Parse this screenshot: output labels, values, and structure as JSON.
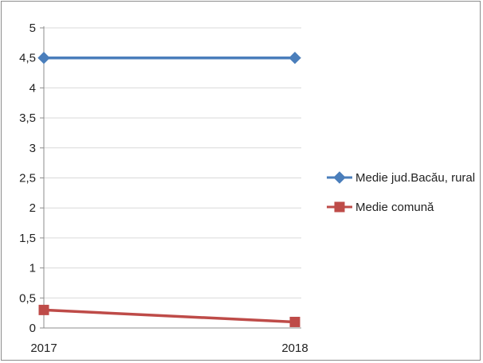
{
  "chart_data": {
    "type": "line",
    "x": [
      "2017",
      "2018"
    ],
    "series": [
      {
        "name": "Medie jud.Bacău, rural",
        "values": [
          4.5,
          4.5
        ],
        "color": "#4a7ebb",
        "marker": "diamond"
      },
      {
        "name": "Medie comună",
        "values": [
          0.3,
          0.1
        ],
        "color": "#be4b48",
        "marker": "square"
      }
    ],
    "yticks": [
      "0",
      "0,5",
      "1",
      "1,5",
      "2",
      "2,5",
      "3",
      "3,5",
      "4",
      "4,5",
      "5"
    ],
    "ylim": [
      0,
      5
    ],
    "grid": true,
    "legend": "right",
    "title": "",
    "xlabel": "",
    "ylabel": ""
  }
}
